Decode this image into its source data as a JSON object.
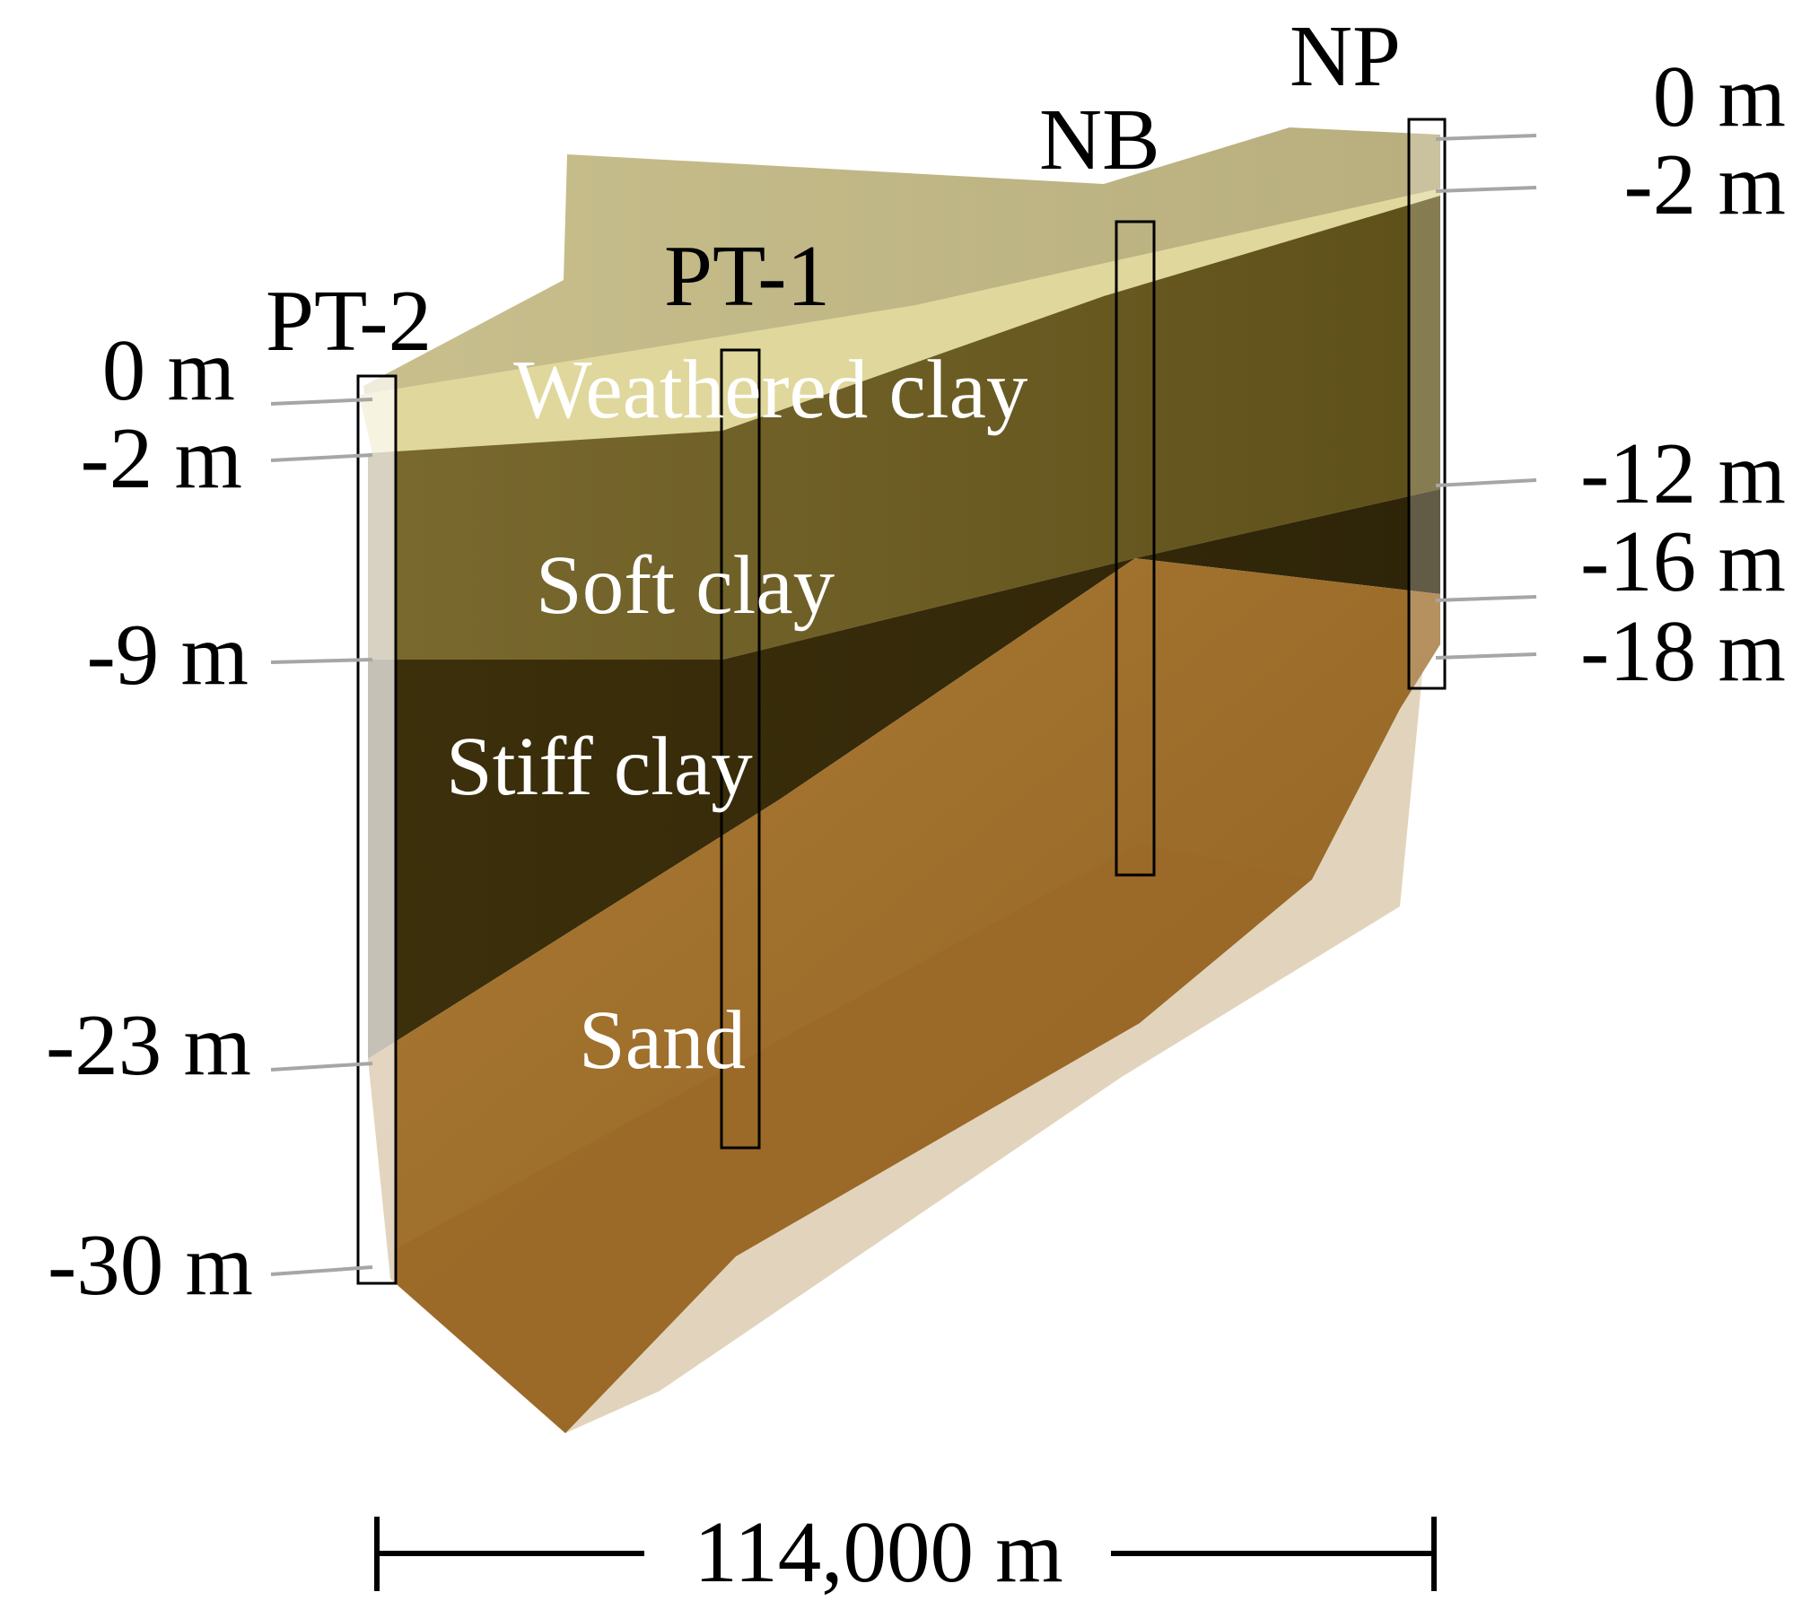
{
  "boreholes": {
    "pt2": "PT-2",
    "pt1": "PT-1",
    "nb": "NB",
    "np": "NP"
  },
  "layers": {
    "weathered": {
      "label": "Weathered clay",
      "color": "#e0d79c"
    },
    "soft": {
      "label": "Soft clay",
      "color": "#6f5f25"
    },
    "stiff": {
      "label": "Stiff clay",
      "color": "#3a2d0c"
    },
    "sand": {
      "label": "Sand",
      "color": "#a0712d"
    },
    "top_surface_color": "#bdb384"
  },
  "left_depths": [
    "0 m",
    "-2 m",
    "-9 m",
    "-23 m",
    "-30 m"
  ],
  "right_depths": [
    "0 m",
    "-2 m",
    "-12 m",
    "-16 m",
    "-18 m"
  ],
  "scale": {
    "label": "114,000 m"
  }
}
